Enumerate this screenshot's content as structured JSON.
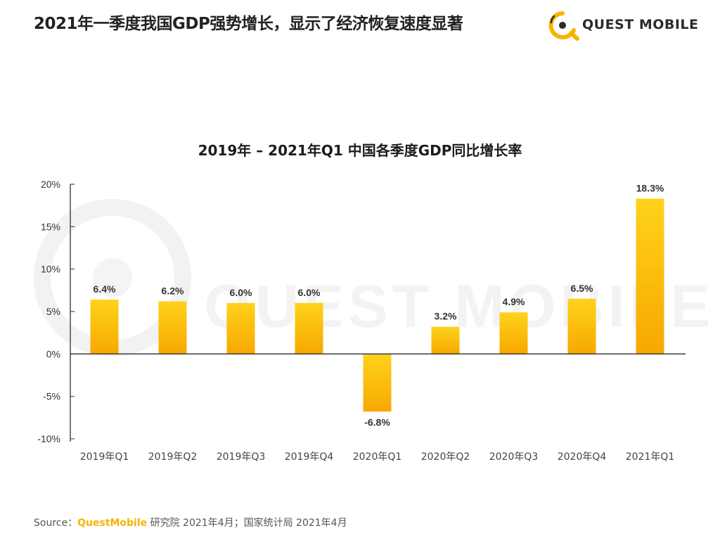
{
  "header": {
    "title": "2021年一季度我国GDP强势增长，显示了经济恢复速度显著",
    "logo_text": "QUEST MOBILE"
  },
  "watermark_text": "QUEST MOBILE",
  "chart_data": {
    "type": "bar",
    "title": "2019年 – 2021年Q1 中国各季度GDP同比增长率",
    "categories": [
      "2019年Q1",
      "2019年Q2",
      "2019年Q3",
      "2019年Q4",
      "2020年Q1",
      "2020年Q2",
      "2020年Q3",
      "2020年Q4",
      "2021年Q1"
    ],
    "values": [
      6.4,
      6.2,
      6.0,
      6.0,
      -6.8,
      3.2,
      4.9,
      6.5,
      18.3
    ],
    "data_labels": [
      "6.4%",
      "6.2%",
      "6.0%",
      "6.0%",
      "-6.8%",
      "3.2%",
      "4.9%",
      "6.5%",
      "18.3%"
    ],
    "yticks": [
      20,
      15,
      10,
      5,
      0,
      -5,
      -10
    ],
    "ytick_labels": [
      "20%",
      "15%",
      "10%",
      "5%",
      "0%",
      "-5%",
      "-10%"
    ],
    "ylim": [
      -10,
      20
    ],
    "xlabel": "",
    "ylabel": "",
    "bar_color_top": "#ffd21c",
    "bar_color_bottom": "#f7a800"
  },
  "source": {
    "prefix": "Source：",
    "brand": "QuestMobile",
    "rest": " 研究院 2021年4月；国家统计局 2021年4月"
  }
}
